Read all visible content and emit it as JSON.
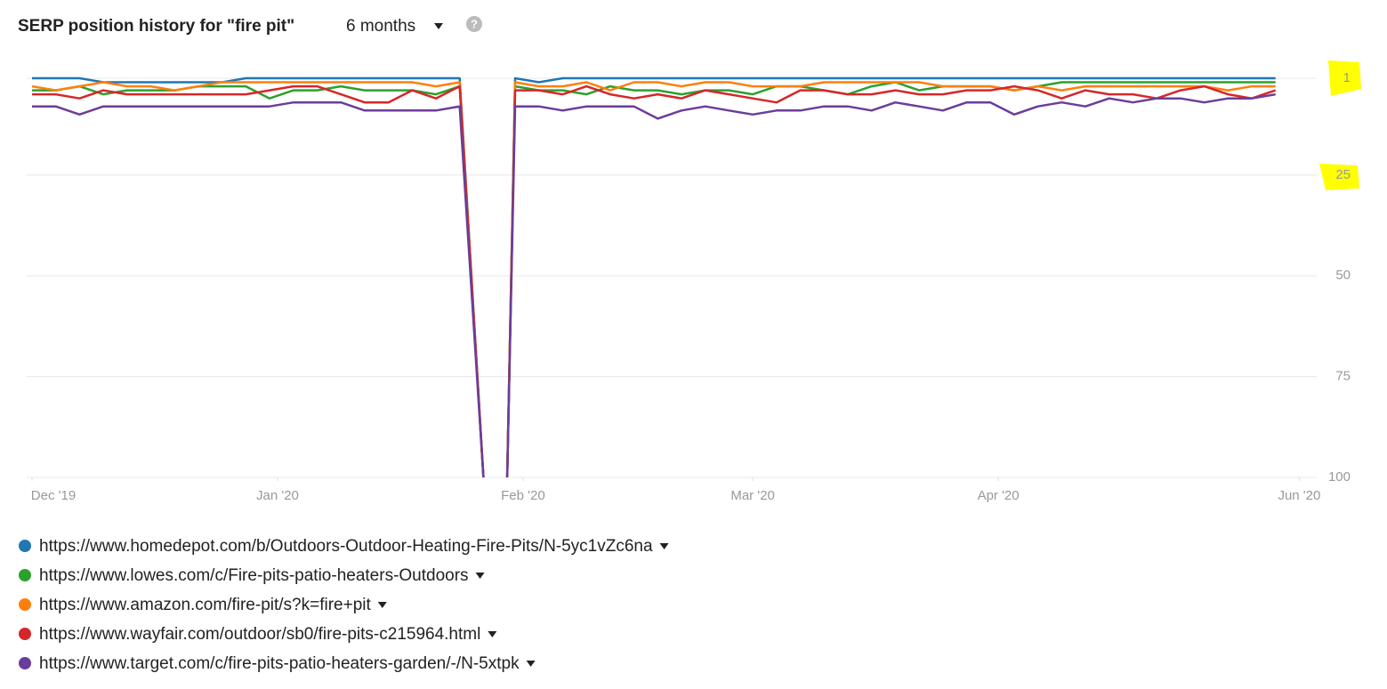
{
  "chart_data": {
    "type": "line",
    "title": "SERP position history for \"fire pit\"",
    "range_selector": "6 months",
    "x": [
      0,
      3,
      6,
      9,
      12,
      15,
      18,
      21,
      24,
      27,
      30,
      33,
      36,
      39,
      42,
      45,
      48,
      51,
      54,
      57,
      58.5,
      60,
      61,
      64,
      67,
      70,
      73,
      76,
      79,
      82,
      85,
      88,
      91,
      94,
      97,
      100,
      103,
      106,
      109,
      112,
      115,
      118,
      121,
      124,
      127,
      130,
      133,
      136,
      139,
      142,
      145,
      148,
      151,
      154,
      157
    ],
    "xlim": [
      -0.67,
      162.2
    ],
    "xticks": [
      {
        "value": 0,
        "label": "Dec '19"
      },
      {
        "value": 31,
        "label": "Jan '20"
      },
      {
        "value": 62,
        "label": "Feb '20"
      },
      {
        "value": 91,
        "label": "Mar '20"
      },
      {
        "value": 122,
        "label": "Apr '20"
      },
      {
        "value": 160,
        "label": "Jun '20"
      }
    ],
    "ylim": [
      1,
      100
    ],
    "y_inverted": true,
    "yticks": [
      1,
      25,
      50,
      75,
      100
    ],
    "grid": true,
    "series": [
      {
        "name": "https://www.homedepot.com/b/Outdoors-Outdoor-Heating-Fire-Pits/N-5yc1vZc6na",
        "color": "#1f77b4",
        "values": [
          1,
          1,
          1,
          2,
          2,
          2,
          2,
          2,
          2,
          1,
          1,
          1,
          1,
          1,
          1,
          1,
          1,
          1,
          1,
          100,
          null,
          100,
          1,
          2,
          1,
          1,
          1,
          1,
          1,
          1,
          1,
          1,
          1,
          1,
          1,
          1,
          1,
          1,
          1,
          1,
          1,
          1,
          1,
          1,
          1,
          1,
          1,
          1,
          1,
          1,
          1,
          1,
          1,
          1,
          1
        ]
      },
      {
        "name": "https://www.lowes.com/c/Fire-pits-patio-heaters-Outdoors",
        "color": "#2ca02c",
        "values": [
          4,
          4,
          3,
          5,
          4,
          4,
          4,
          3,
          3,
          3,
          6,
          4,
          4,
          3,
          4,
          4,
          4,
          5,
          3,
          100,
          null,
          100,
          3,
          4,
          4,
          5,
          3,
          4,
          4,
          5,
          4,
          4,
          5,
          3,
          3,
          4,
          5,
          3,
          2,
          4,
          3,
          3,
          3,
          4,
          3,
          2,
          2,
          2,
          2,
          2,
          2,
          2,
          2,
          2,
          2
        ]
      },
      {
        "name": "https://www.amazon.com/fire-pit/s?k=fire+pit",
        "color": "#ff7f0e",
        "values": [
          3,
          4,
          3,
          2,
          3,
          3,
          4,
          3,
          2,
          2,
          2,
          2,
          2,
          2,
          2,
          2,
          2,
          3,
          2,
          100,
          null,
          100,
          2,
          3,
          3,
          2,
          4,
          2,
          2,
          3,
          2,
          2,
          3,
          3,
          3,
          2,
          2,
          2,
          2,
          2,
          3,
          3,
          3,
          4,
          3,
          4,
          3,
          3,
          3,
          3,
          3,
          3,
          4,
          3,
          3
        ]
      },
      {
        "name": "https://www.wayfair.com/outdoor/sb0/fire-pits-c215964.html",
        "color": "#d62728",
        "values": [
          5,
          5,
          6,
          4,
          5,
          5,
          5,
          5,
          5,
          5,
          4,
          3,
          3,
          5,
          7,
          7,
          4,
          6,
          3,
          100,
          null,
          100,
          4,
          4,
          5,
          3,
          5,
          6,
          5,
          6,
          4,
          5,
          6,
          7,
          4,
          4,
          5,
          5,
          4,
          5,
          5,
          4,
          4,
          3,
          4,
          6,
          4,
          5,
          5,
          6,
          4,
          3,
          5,
          6,
          4
        ]
      },
      {
        "name": "https://www.target.com/c/fire-pits-patio-heaters-garden/-/N-5xtpk",
        "color": "#6b3d9a",
        "values": [
          8,
          8,
          10,
          8,
          8,
          8,
          8,
          8,
          8,
          8,
          8,
          7,
          7,
          7,
          9,
          9,
          9,
          9,
          8,
          100,
          null,
          100,
          8,
          8,
          9,
          8,
          8,
          8,
          11,
          9,
          8,
          9,
          10,
          9,
          9,
          8,
          8,
          9,
          7,
          8,
          9,
          7,
          7,
          10,
          8,
          7,
          8,
          6,
          7,
          6,
          6,
          7,
          6,
          6,
          5
        ]
      }
    ]
  }
}
